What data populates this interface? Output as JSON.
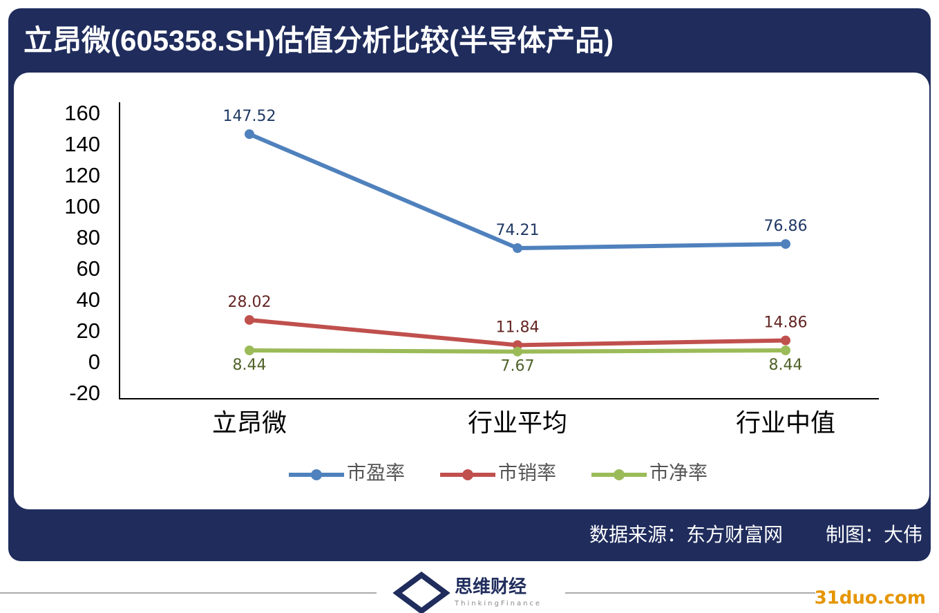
{
  "chart_data": {
    "type": "line",
    "title": "立昂微(605358.SH)估值分析比较(半导体产品)",
    "categories": [
      "立昂微",
      "行业平均",
      "行业中值"
    ],
    "series": [
      {
        "name": "市盈率",
        "color": "#4f81bd",
        "label_color": "#1f3864",
        "label_position": "above",
        "values": [
          147.52,
          74.21,
          76.86
        ]
      },
      {
        "name": "市销率",
        "color": "#c0504d",
        "label_color": "#632523",
        "label_position": "above",
        "values": [
          28.02,
          11.84,
          14.86
        ]
      },
      {
        "name": "市净率",
        "color": "#9bbb59",
        "label_color": "#4f6228",
        "label_position": "below",
        "values": [
          8.44,
          7.67,
          8.44
        ]
      }
    ],
    "ylim": [
      -20,
      160
    ],
    "yticks": [
      -20,
      0,
      20,
      40,
      60,
      80,
      100,
      120,
      140,
      160
    ],
    "grid": false,
    "legend": "bottom",
    "source": "数据来源：东方财富网",
    "credit": "制图：大伟"
  },
  "footer": {
    "brand": "思维财经",
    "brand_en": "ThinkingFinance",
    "watermark": "31duo.com"
  }
}
